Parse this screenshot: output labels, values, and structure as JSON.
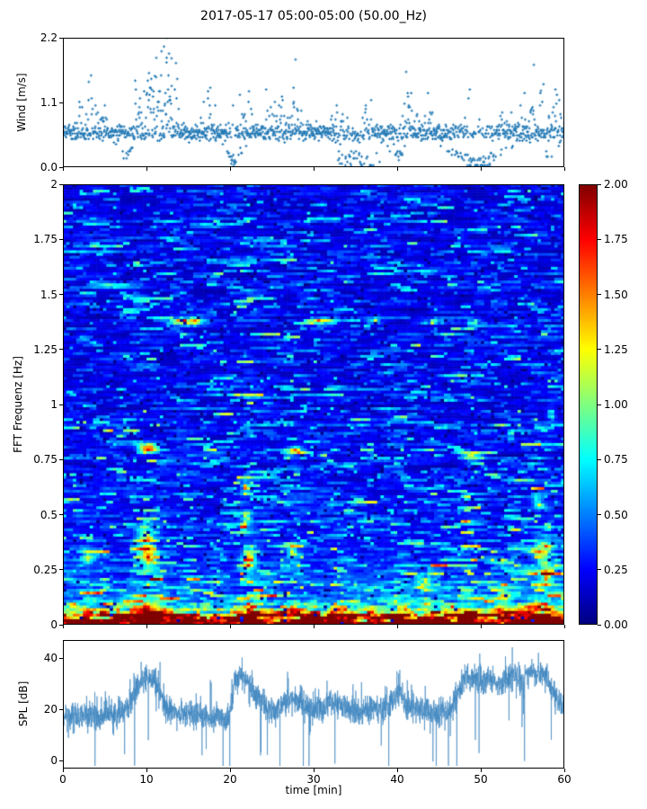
{
  "title": "2017-05-17 05:00-05:00 (50.00_Hz)",
  "colors": {
    "scatter": "#1f77b4",
    "spl_line": "#3f87c0",
    "axis": "#000000",
    "background": "#ffffff",
    "colormap": "jet"
  },
  "chart_data": [
    {
      "type": "scatter",
      "name": "wind-speed",
      "ylabel": "Wind [m/s]",
      "x_range": [
        0,
        60
      ],
      "y_range": [
        0,
        2.2
      ],
      "ytick_values": [
        0.0,
        1.1,
        2.2
      ],
      "ytick_labels": [
        "0.0",
        "1.1",
        "2.2"
      ],
      "marker": "plus",
      "seed": 42,
      "n_points": 1500,
      "base_band": [
        0.42,
        0.74
      ],
      "quantize": 0.03,
      "tail_base_p": 0.08,
      "bursts": [
        [
          2.8,
          1.5,
          0.4,
          0.55
        ],
        [
          4.5,
          0.8,
          0.3,
          0.4
        ],
        [
          10.5,
          2.0,
          0.55,
          0.95
        ],
        [
          13.0,
          1.2,
          0.5,
          1.0
        ],
        [
          17.5,
          1.2,
          0.35,
          0.55
        ],
        [
          21.5,
          1.5,
          0.3,
          0.5
        ],
        [
          25.5,
          1.8,
          0.35,
          0.55
        ],
        [
          27.8,
          0.8,
          0.35,
          0.65
        ],
        [
          30.0,
          0.8,
          0.2,
          0.3
        ],
        [
          33.0,
          1.2,
          0.3,
          0.5
        ],
        [
          36.5,
          0.8,
          0.2,
          0.35
        ],
        [
          41.5,
          2.0,
          0.35,
          0.5
        ],
        [
          44.0,
          1.0,
          0.25,
          0.45
        ],
        [
          48.5,
          1.5,
          0.25,
          0.4
        ],
        [
          53.0,
          1.0,
          0.2,
          0.35
        ],
        [
          56.5,
          2.0,
          0.4,
          0.6
        ],
        [
          59.0,
          1.0,
          0.3,
          0.45
        ]
      ],
      "dips": [
        [
          7.5,
          0.7,
          0.3,
          0.25
        ],
        [
          20.5,
          1.0,
          0.4,
          0.3
        ],
        [
          34.0,
          1.5,
          0.25,
          0.4
        ],
        [
          36.5,
          2.0,
          0.25,
          0.45
        ],
        [
          40.0,
          1.0,
          0.3,
          0.25
        ],
        [
          49.5,
          3.0,
          0.5,
          0.45
        ],
        [
          58.0,
          1.0,
          0.2,
          0.25
        ]
      ],
      "peaks": [
        [
          12.4,
          2.2
        ],
        [
          12.1,
          2.05
        ],
        [
          11.8,
          1.97
        ],
        [
          12.7,
          1.93
        ],
        [
          13.0,
          1.85
        ],
        [
          12.4,
          1.78
        ],
        [
          10.3,
          1.6
        ],
        [
          11.0,
          1.55
        ],
        [
          3.1,
          1.45
        ],
        [
          27.6,
          1.35
        ],
        [
          57.2,
          1.3
        ],
        [
          41.3,
          1.2
        ]
      ]
    },
    {
      "type": "heatmap",
      "name": "fft-spectrogram",
      "ylabel": "FFT Frequenz [Hz]",
      "x_range": [
        0,
        60
      ],
      "y_range": [
        0,
        2
      ],
      "ytick_values": [
        0,
        0.25,
        0.5,
        0.75,
        1,
        1.25,
        1.5,
        1.75,
        2
      ],
      "ytick_labels": [
        "0",
        "0.25",
        "0.5",
        "0.75",
        "1",
        "1.25",
        "1.5",
        "1.75",
        "2"
      ],
      "clim": [
        0,
        2
      ],
      "colorbar_tick_values": [
        0,
        0.25,
        0.5,
        0.75,
        1,
        1.25,
        1.5,
        1.75,
        2
      ],
      "colorbar_tick_labels": [
        "0.00",
        "0.25",
        "0.50",
        "0.75",
        "1.00",
        "1.25",
        "1.50",
        "1.75",
        "2.00"
      ],
      "grid": {
        "cols": 150,
        "rows": 160
      },
      "seed": 7,
      "base_level": 0.3,
      "low_freq_boost": [
        1.55,
        0.05,
        0.5,
        0.16
      ],
      "col_bursts": [
        [
          10.0,
          1.5,
          0.6,
          0.45
        ],
        [
          21.8,
          1.3,
          0.55,
          0.8
        ],
        [
          27.6,
          0.9,
          0.3,
          0.7
        ],
        [
          33.0,
          1.0,
          0.2,
          0.6
        ],
        [
          40.5,
          1.0,
          0.25,
          0.5
        ],
        [
          44.0,
          0.8,
          0.2,
          0.5
        ],
        [
          48.0,
          1.0,
          0.3,
          0.5
        ],
        [
          53.0,
          1.0,
          0.25,
          0.5
        ],
        [
          57.0,
          2.0,
          0.5,
          0.55
        ],
        [
          5.0,
          0.8,
          0.2,
          0.5
        ],
        [
          2.0,
          0.8,
          0.15,
          0.5
        ]
      ],
      "hotspots": [
        [
          14.8,
          1.38,
          2.0,
          0.018,
          1.4
        ],
        [
          30.8,
          1.38,
          1.6,
          0.014,
          0.8
        ],
        [
          37.3,
          1.38,
          1.0,
          0.013,
          0.55
        ],
        [
          44.8,
          1.38,
          1.5,
          0.014,
          0.6
        ],
        [
          49.3,
          1.38,
          0.8,
          0.013,
          0.5
        ],
        [
          10.1,
          0.8,
          1.1,
          0.022,
          1.3
        ],
        [
          27.9,
          0.79,
          1.1,
          0.018,
          0.9
        ],
        [
          49.0,
          0.76,
          1.2,
          0.018,
          0.9
        ],
        [
          3.0,
          0.3,
          0.7,
          0.04,
          0.5
        ],
        [
          9.8,
          0.4,
          0.9,
          0.05,
          0.7
        ],
        [
          10.2,
          0.3,
          0.9,
          0.05,
          0.8
        ],
        [
          22.3,
          0.3,
          0.7,
          0.05,
          0.9
        ],
        [
          22.0,
          0.47,
          0.6,
          0.035,
          0.7
        ],
        [
          21.8,
          0.62,
          0.5,
          0.03,
          0.5
        ],
        [
          27.5,
          0.33,
          0.6,
          0.035,
          0.6
        ],
        [
          43.0,
          0.18,
          0.9,
          0.035,
          0.7
        ],
        [
          52.8,
          0.12,
          0.9,
          0.03,
          0.6
        ],
        [
          57.3,
          0.33,
          1.0,
          0.05,
          0.8
        ],
        [
          57.8,
          0.22,
          0.9,
          0.04,
          0.8
        ],
        [
          58.5,
          0.95,
          0.5,
          0.025,
          0.5
        ],
        [
          56.8,
          0.55,
          0.7,
          0.03,
          0.6
        ]
      ]
    },
    {
      "type": "line",
      "name": "spl",
      "ylabel": "SPL [dB]",
      "xlabel": "time [min]",
      "x_range": [
        0,
        60
      ],
      "y_range": [
        -3,
        47
      ],
      "ytick_values": [
        0,
        20,
        40
      ],
      "ytick_labels": [
        "0",
        "20",
        "40"
      ],
      "xtick_values": [
        0,
        10,
        20,
        30,
        40,
        50,
        60
      ],
      "xtick_labels": [
        "0",
        "10",
        "20",
        "30",
        "40",
        "50",
        "60"
      ],
      "seed": 13,
      "n_points": 3000,
      "noise_sigma": 2.6,
      "profile": [
        [
          0,
          17
        ],
        [
          4,
          17.5
        ],
        [
          5.5,
          19
        ],
        [
          6.5,
          18
        ],
        [
          8,
          21
        ],
        [
          9,
          30
        ],
        [
          10,
          33
        ],
        [
          11,
          31
        ],
        [
          11.7,
          26
        ],
        [
          12.3,
          20
        ],
        [
          14,
          18.5
        ],
        [
          16,
          18
        ],
        [
          18,
          17.5
        ],
        [
          19.8,
          16
        ],
        [
          20.6,
          29
        ],
        [
          21.2,
          34
        ],
        [
          22,
          31
        ],
        [
          22.8,
          27
        ],
        [
          23.6,
          25
        ],
        [
          24.6,
          21
        ],
        [
          25.4,
          20
        ],
        [
          26.6,
          22
        ],
        [
          27.3,
          26
        ],
        [
          28.2,
          22
        ],
        [
          29.5,
          20.5
        ],
        [
          31,
          21
        ],
        [
          33,
          22
        ],
        [
          34.5,
          20
        ],
        [
          36,
          19.5
        ],
        [
          38,
          20
        ],
        [
          39.5,
          23
        ],
        [
          40.3,
          26
        ],
        [
          41.2,
          22
        ],
        [
          42.5,
          20
        ],
        [
          44,
          19
        ],
        [
          45.5,
          18.5
        ],
        [
          46.5,
          20
        ],
        [
          47.3,
          26
        ],
        [
          48,
          31
        ],
        [
          49,
          32
        ],
        [
          50,
          30
        ],
        [
          51,
          32
        ],
        [
          52,
          29.5
        ],
        [
          53,
          31.5
        ],
        [
          54,
          33
        ],
        [
          55,
          31.5
        ],
        [
          55.8,
          35
        ],
        [
          56.6,
          33.5
        ],
        [
          57.4,
          34.5
        ],
        [
          58.2,
          30
        ],
        [
          58.9,
          25
        ],
        [
          59.5,
          22.5
        ],
        [
          60,
          22
        ]
      ]
    }
  ]
}
